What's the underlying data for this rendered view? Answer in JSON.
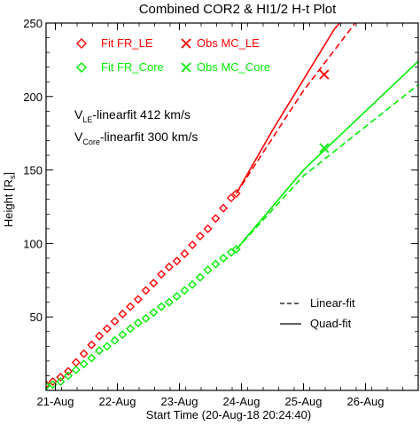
{
  "chart_data": {
    "type": "scatter",
    "title": "Combined COR2 & HI1/2 H-t Plot",
    "xlabel": "Start Time (20-Aug-18 20:24:40)",
    "ylabel": "Height [R",
    "ylabel_sub": "s",
    "ylabel_end": "]",
    "xlim": [
      "2018-08-20T20:24",
      "2018-08-26T20:24"
    ],
    "ylim": [
      0,
      250
    ],
    "x_ticks": [
      {
        "x": "2018-08-21T00:00",
        "label": "21-Aug"
      },
      {
        "x": "2018-08-22T00:00",
        "label": "22-Aug"
      },
      {
        "x": "2018-08-23T00:00",
        "label": "23-Aug"
      },
      {
        "x": "2018-08-24T00:00",
        "label": "24-Aug"
      },
      {
        "x": "2018-08-25T00:00",
        "label": "25-Aug"
      },
      {
        "x": "2018-08-26T00:00",
        "label": "26-Aug"
      }
    ],
    "y_ticks": [
      50,
      100,
      150,
      200,
      250
    ],
    "colors": {
      "le": "#ff0000",
      "core": "#00ee00"
    },
    "legend": [
      {
        "label": "Fit FR_LE",
        "marker": "diamond",
        "color": "#ff0000"
      },
      {
        "label": "Obs MC_LE",
        "marker": "x",
        "color": "#ff0000"
      },
      {
        "label": "Fit FR_Core",
        "marker": "diamond",
        "color": "#00ee00"
      },
      {
        "label": "Obs MC_Core",
        "marker": "x",
        "color": "#00ee00"
      }
    ],
    "line_legend": [
      {
        "label": "Linear-fit",
        "style": "dashed"
      },
      {
        "label": "Quad-fit",
        "style": "solid"
      }
    ],
    "annotations": [
      {
        "prefix": "V",
        "sub": "LE",
        "suffix": "-linearfit   412 km/s"
      },
      {
        "prefix": "V",
        "sub": "Core",
        "suffix": "-linearfit   300 km/s"
      }
    ],
    "series": [
      {
        "name": "Fit FR_LE",
        "marker": "diamond",
        "color": "#ff0000",
        "points": [
          [
            "2018-08-20T20:24",
            4
          ],
          [
            "2018-08-20T23:00",
            6
          ],
          [
            "2018-08-21T02:00",
            9
          ],
          [
            "2018-08-21T05:00",
            13
          ],
          [
            "2018-08-21T08:00",
            19
          ],
          [
            "2018-08-21T11:00",
            25
          ],
          [
            "2018-08-21T14:00",
            31
          ],
          [
            "2018-08-21T17:00",
            37
          ],
          [
            "2018-08-21T20:00",
            42
          ],
          [
            "2018-08-21T23:00",
            47
          ],
          [
            "2018-08-22T02:00",
            52
          ],
          [
            "2018-08-22T05:00",
            57
          ],
          [
            "2018-08-22T08:00",
            62
          ],
          [
            "2018-08-22T11:00",
            68
          ],
          [
            "2018-08-22T14:00",
            73
          ],
          [
            "2018-08-22T17:00",
            79
          ],
          [
            "2018-08-22T20:00",
            84
          ],
          [
            "2018-08-22T23:00",
            88
          ],
          [
            "2018-08-23T02:00",
            93
          ],
          [
            "2018-08-23T05:00",
            99
          ],
          [
            "2018-08-23T08:00",
            105
          ],
          [
            "2018-08-23T11:00",
            110
          ],
          [
            "2018-08-23T14:00",
            117
          ],
          [
            "2018-08-23T17:00",
            124
          ],
          [
            "2018-08-23T20:00",
            131
          ],
          [
            "2018-08-23T22:00",
            134
          ]
        ]
      },
      {
        "name": "Fit FR_Core",
        "marker": "diamond",
        "color": "#00ee00",
        "points": [
          [
            "2018-08-20T20:24",
            3
          ],
          [
            "2018-08-20T23:00",
            4
          ],
          [
            "2018-08-21T02:00",
            6
          ],
          [
            "2018-08-21T05:00",
            10
          ],
          [
            "2018-08-21T08:00",
            14
          ],
          [
            "2018-08-21T11:00",
            18
          ],
          [
            "2018-08-21T14:00",
            22
          ],
          [
            "2018-08-21T17:00",
            27
          ],
          [
            "2018-08-21T20:00",
            30
          ],
          [
            "2018-08-21T23:00",
            34
          ],
          [
            "2018-08-22T02:00",
            38
          ],
          [
            "2018-08-22T05:00",
            42
          ],
          [
            "2018-08-22T08:00",
            46
          ],
          [
            "2018-08-22T11:00",
            49
          ],
          [
            "2018-08-22T14:00",
            53
          ],
          [
            "2018-08-22T17:00",
            57
          ],
          [
            "2018-08-22T20:00",
            60
          ],
          [
            "2018-08-22T23:00",
            64
          ],
          [
            "2018-08-23T02:00",
            68
          ],
          [
            "2018-08-23T05:00",
            72
          ],
          [
            "2018-08-23T08:00",
            77
          ],
          [
            "2018-08-23T11:00",
            82
          ],
          [
            "2018-08-23T14:00",
            86
          ],
          [
            "2018-08-23T17:00",
            90
          ],
          [
            "2018-08-23T20:00",
            94
          ],
          [
            "2018-08-23T22:00",
            96
          ]
        ]
      },
      {
        "name": "Obs MC_LE",
        "marker": "x",
        "color": "#ff0000",
        "points": [
          [
            "2018-08-25T08:00",
            215
          ]
        ]
      },
      {
        "name": "Obs MC_Core",
        "marker": "x",
        "color": "#00ee00",
        "points": [
          [
            "2018-08-25T08:00",
            165
          ]
        ]
      }
    ],
    "fit_lines": [
      {
        "series": "Fit FR_LE",
        "style": "solid",
        "color": "#ff0000",
        "points": [
          [
            "2018-08-23T22:00",
            134
          ],
          [
            "2018-08-24T12:00",
            177
          ],
          [
            "2018-08-25T12:00",
            246
          ],
          [
            "2018-08-25T14:00",
            250
          ]
        ]
      },
      {
        "series": "Fit FR_LE",
        "style": "dashed",
        "color": "#ff0000",
        "points": [
          [
            "2018-08-23T22:00",
            134
          ],
          [
            "2018-08-25T00:00",
            204
          ],
          [
            "2018-08-25T20:00",
            250
          ]
        ]
      },
      {
        "series": "Fit FR_Core",
        "style": "solid",
        "color": "#00ee00",
        "points": [
          [
            "2018-08-23T22:00",
            96
          ],
          [
            "2018-08-25T00:00",
            150
          ],
          [
            "2018-08-26T20:24",
            224
          ]
        ]
      },
      {
        "series": "Fit FR_Core",
        "style": "dashed",
        "color": "#00ee00",
        "points": [
          [
            "2018-08-23T22:00",
            96
          ],
          [
            "2018-08-25T00:00",
            146
          ],
          [
            "2018-08-26T20:24",
            208
          ]
        ]
      }
    ]
  }
}
